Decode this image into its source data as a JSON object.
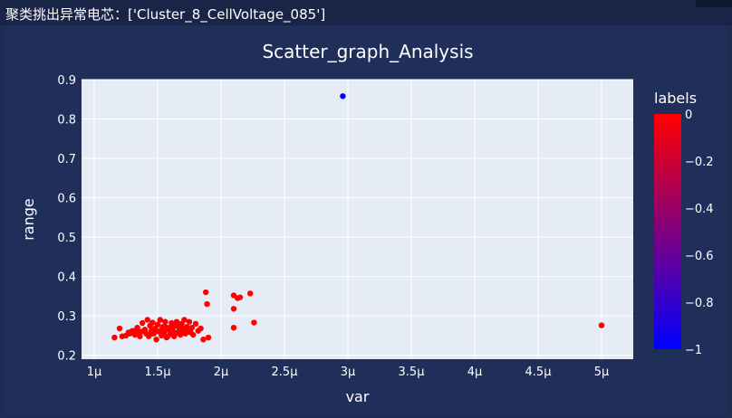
{
  "header": {
    "caption": "聚类挑出异常电芯：['Cluster_8_CellVoltage_085']"
  },
  "chart_data": {
    "type": "scatter",
    "title": "Scatter_graph_Analysis",
    "xlabel": "var",
    "ylabel": "range",
    "xlim": [
      0.9,
      5.25
    ],
    "ylim": [
      0.19,
      0.9
    ],
    "x_ticks": [
      1,
      1.5,
      2,
      2.5,
      3,
      3.5,
      4,
      4.5,
      5
    ],
    "x_tick_labels": [
      "1μ",
      "1.5μ",
      "2μ",
      "2.5μ",
      "3μ",
      "3.5μ",
      "4μ",
      "4.5μ",
      "5μ"
    ],
    "y_ticks": [
      0.2,
      0.3,
      0.4,
      0.5,
      0.6,
      0.7,
      0.8,
      0.9
    ],
    "y_tick_labels": [
      "0.2",
      "0.3",
      "0.4",
      "0.5",
      "0.6",
      "0.7",
      "0.8",
      "0.9"
    ],
    "grid": true,
    "colorbar": {
      "title": "labels",
      "range": [
        -1,
        0
      ],
      "ticks": [
        0,
        -0.2,
        -0.4,
        -0.6,
        -0.8,
        -1
      ],
      "tick_labels": [
        "0",
        "−0.2",
        "−0.4",
        "−0.6",
        "−0.8",
        "−1"
      ],
      "colors": [
        "#0000ff",
        "#ff0000"
      ]
    },
    "colors": {
      "plot_bg": "#e5ecf6",
      "paper_bg": "#1f2f5a",
      "normal": "#ff0000",
      "anomaly": "#0000ff"
    },
    "points": [
      [
        2.96,
        0.858,
        -1
      ],
      [
        5.0,
        0.276,
        0
      ],
      [
        1.16,
        0.245,
        0
      ],
      [
        1.2,
        0.268,
        0
      ],
      [
        1.22,
        0.248,
        0
      ],
      [
        1.25,
        0.25,
        0
      ],
      [
        1.28,
        0.255,
        0
      ],
      [
        1.3,
        0.262,
        0
      ],
      [
        1.32,
        0.252,
        0
      ],
      [
        1.34,
        0.27,
        0
      ],
      [
        1.35,
        0.258,
        0
      ],
      [
        1.36,
        0.248,
        0
      ],
      [
        1.38,
        0.282,
        0
      ],
      [
        1.4,
        0.265,
        0
      ],
      [
        1.41,
        0.255,
        0
      ],
      [
        1.42,
        0.29,
        0
      ],
      [
        1.43,
        0.248,
        0
      ],
      [
        1.44,
        0.275,
        0
      ],
      [
        1.45,
        0.262,
        0
      ],
      [
        1.46,
        0.283,
        0
      ],
      [
        1.47,
        0.255,
        0
      ],
      [
        1.48,
        0.268,
        0
      ],
      [
        1.49,
        0.24,
        0
      ],
      [
        1.5,
        0.278,
        0
      ],
      [
        1.51,
        0.26,
        0
      ],
      [
        1.52,
        0.29,
        0
      ],
      [
        1.53,
        0.25,
        0
      ],
      [
        1.54,
        0.272,
        0
      ],
      [
        1.55,
        0.258,
        0
      ],
      [
        1.56,
        0.285,
        0
      ],
      [
        1.57,
        0.245,
        0
      ],
      [
        1.58,
        0.265,
        0
      ],
      [
        1.59,
        0.27,
        0
      ],
      [
        1.6,
        0.255,
        0
      ],
      [
        1.61,
        0.282,
        0
      ],
      [
        1.62,
        0.262,
        0
      ],
      [
        1.63,
        0.248,
        0
      ],
      [
        1.64,
        0.275,
        0
      ],
      [
        1.65,
        0.285,
        0
      ],
      [
        1.66,
        0.258,
        0
      ],
      [
        1.67,
        0.268,
        0
      ],
      [
        1.68,
        0.252,
        0
      ],
      [
        1.69,
        0.28,
        0
      ],
      [
        1.7,
        0.262,
        0
      ],
      [
        1.71,
        0.29,
        0
      ],
      [
        1.72,
        0.255,
        0
      ],
      [
        1.73,
        0.272,
        0
      ],
      [
        1.74,
        0.265,
        0
      ],
      [
        1.75,
        0.285,
        0
      ],
      [
        1.76,
        0.258,
        0
      ],
      [
        1.77,
        0.27,
        0
      ],
      [
        1.78,
        0.252,
        0
      ],
      [
        1.8,
        0.28,
        0
      ],
      [
        1.82,
        0.262,
        0
      ],
      [
        1.84,
        0.268,
        0
      ],
      [
        1.86,
        0.24,
        0
      ],
      [
        1.88,
        0.36,
        0
      ],
      [
        1.89,
        0.33,
        0
      ],
      [
        1.9,
        0.245,
        0
      ],
      [
        1.37,
        0.26,
        0
      ],
      [
        1.45,
        0.255,
        0
      ],
      [
        1.53,
        0.265,
        0
      ],
      [
        1.58,
        0.248,
        0
      ],
      [
        1.62,
        0.272,
        0
      ],
      [
        1.66,
        0.28,
        0
      ],
      [
        1.7,
        0.268,
        0
      ],
      [
        1.49,
        0.262,
        0
      ],
      [
        1.56,
        0.272,
        0
      ],
      [
        1.64,
        0.255,
        0
      ],
      [
        1.33,
        0.264,
        0
      ],
      [
        1.27,
        0.258,
        0
      ],
      [
        2.1,
        0.352,
        0
      ],
      [
        2.13,
        0.345,
        0
      ],
      [
        2.15,
        0.347,
        0
      ],
      [
        2.23,
        0.357,
        0
      ],
      [
        2.1,
        0.318,
        0
      ],
      [
        2.1,
        0.27,
        0
      ],
      [
        2.26,
        0.283,
        0
      ]
    ]
  }
}
